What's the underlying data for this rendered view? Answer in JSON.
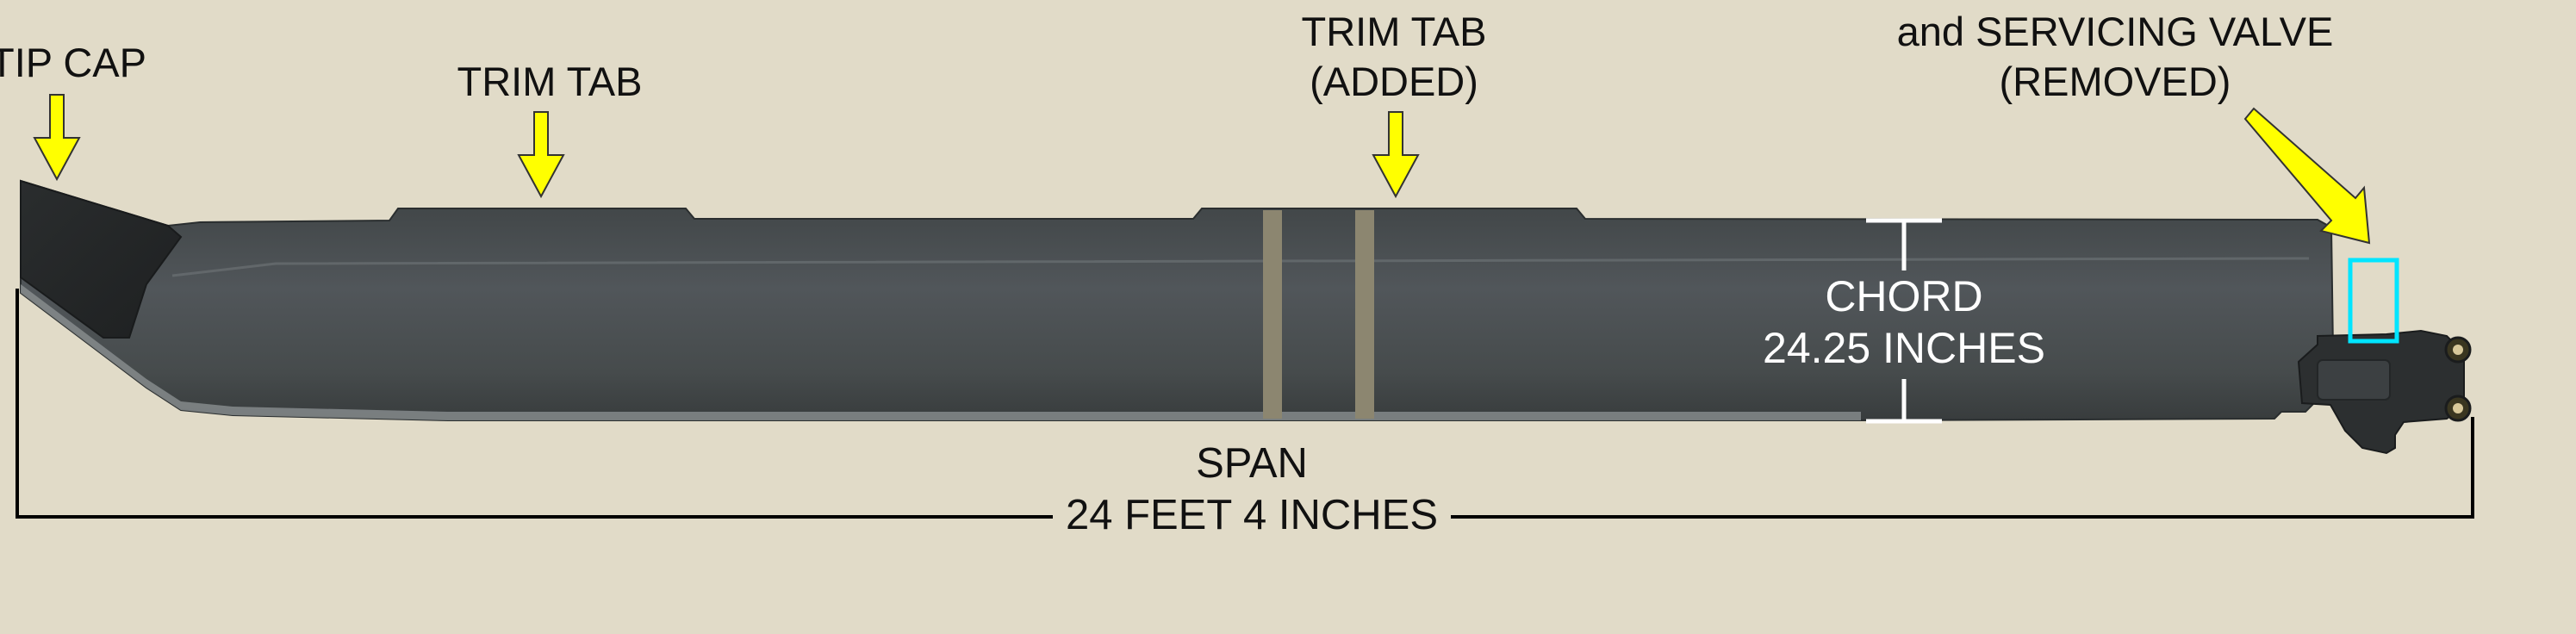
{
  "labels": {
    "tip_cap": "TIP CAP",
    "trim_tab": "TRIM TAB",
    "trim_tab_added_line1": "TRIM TAB",
    "trim_tab_added_line2": "(ADDED)",
    "servicing_valve_line1": "and SERVICING VALVE",
    "servicing_valve_line2": "(REMOVED)",
    "chord_line1": "CHORD",
    "chord_line2": "24.25 INCHES",
    "span_line1": "SPAN",
    "span_line2": "24 FEET 4 INCHES"
  },
  "colors": {
    "background": "#e1dbc8",
    "blade": "#4a4e4f",
    "callout_arrow": "#ffff00",
    "highlight_box": "#00e5ff",
    "dimension_line": "#000000",
    "chord_text": "#ffffff"
  },
  "icons": {
    "callout": "yellow-down-arrow",
    "valve_callout": "yellow-diagonal-arrow"
  }
}
